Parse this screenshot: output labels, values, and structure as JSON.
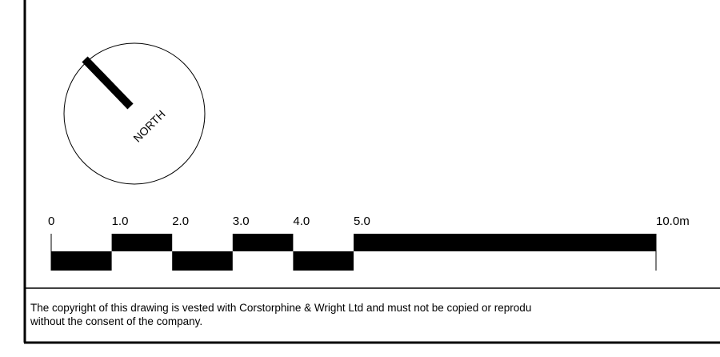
{
  "compass": {
    "label": "NORTH"
  },
  "scale_bar": {
    "unit": "m",
    "divisions": [
      0,
      1,
      2,
      3,
      4,
      5,
      10
    ],
    "labels": [
      "0",
      "1.0",
      "2.0",
      "3.0",
      "4.0",
      "5.0",
      "10.0m"
    ]
  },
  "copyright": {
    "text": "The copyright of this drawing is vested with Corstorphine & Wright Ltd and must not be copied or reprodu\nwithout the consent of the company."
  }
}
